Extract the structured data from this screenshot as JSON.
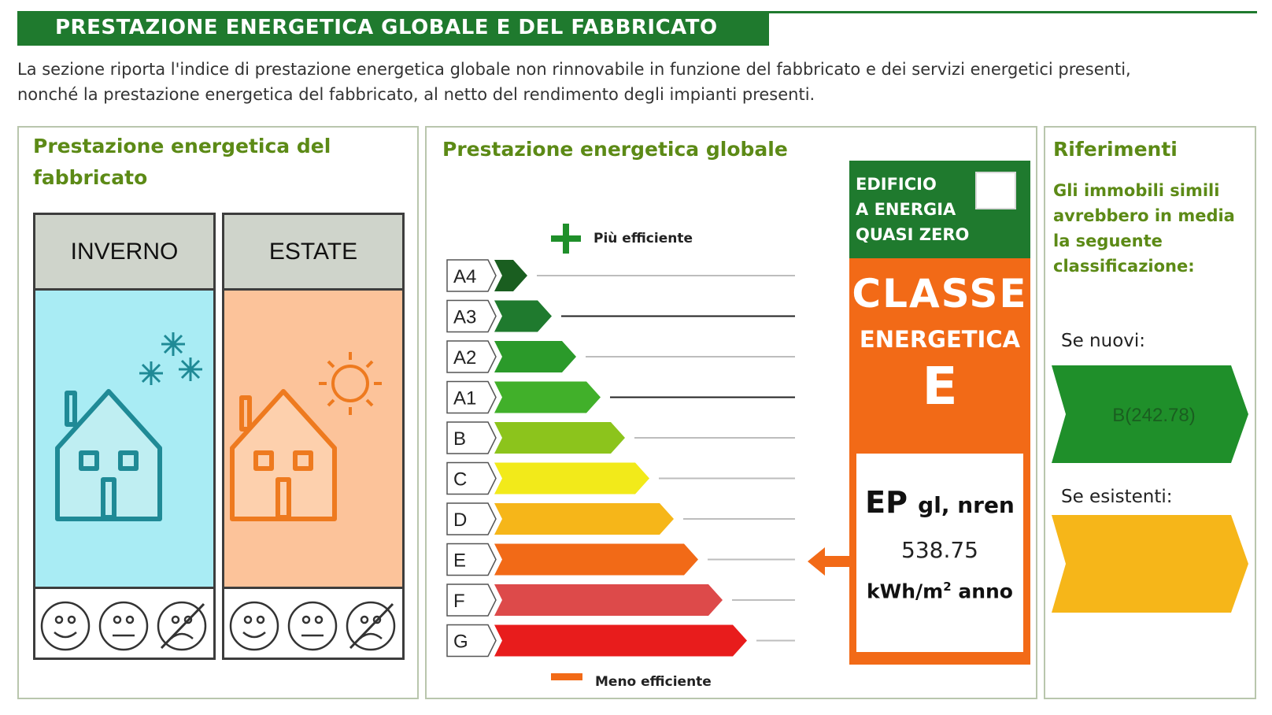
{
  "header": {
    "title": "PRESTAZIONE ENERGETICA GLOBALE  E DEL FABBRICATO",
    "intro_line1": "La sezione riporta l'indice di prestazione energetica globale non rinnovabile in funzione del fabbricato e dei servizi energetici presenti,",
    "intro_line2": "nonché la prestazione energetica del fabbricato, al netto del rendimento degli impianti presenti."
  },
  "building": {
    "title_line1": "Prestazione energetica del",
    "title_line2": "fabbricato",
    "winter_label": "INVERNO",
    "summer_label": "ESTATE",
    "colors": {
      "winter": "#a9ecf4",
      "summer": "#fcc39a",
      "winter_icon": "#1f8a96",
      "summer_icon": "#ee7a1f"
    }
  },
  "global": {
    "title": "Prestazione energetica globale",
    "more_efficient": "Più efficiente",
    "less_efficient": "Meno efficiente",
    "classes": [
      {
        "label": "A4",
        "color": "#1a5e20"
      },
      {
        "label": "A3",
        "color": "#1f7a2e"
      },
      {
        "label": "A2",
        "color": "#2b9a2a"
      },
      {
        "label": "A1",
        "color": "#41b02a"
      },
      {
        "label": "B",
        "color": "#8cc41c"
      },
      {
        "label": "C",
        "color": "#f2ea1a"
      },
      {
        "label": "D",
        "color": "#f6b619"
      },
      {
        "label": "E",
        "color": "#f26a17"
      },
      {
        "label": "F",
        "color": "#dd4a4a"
      },
      {
        "label": "G",
        "color": "#e81c1c"
      }
    ],
    "current_class": "E"
  },
  "energy_class": {
    "nzeb_line1": "EDIFICIO",
    "nzeb_line2": "A ENERGIA",
    "nzeb_line3": "QUASI ZERO",
    "classe": "CLASSE",
    "energetica": "ENERGETICA",
    "class_value": "E",
    "ep_label": "EP",
    "ep_sub": "gl, nren",
    "ep_value": "538.75",
    "ep_unit": "kWh/m",
    "ep_unit_sup": "2",
    "ep_unit_tail": "anno"
  },
  "references": {
    "title": "Riferimenti",
    "line1": "Gli immobili simili",
    "line2": "avrebbero in media",
    "line3": "la seguente",
    "line4": "classificazione:",
    "new_label": "Se nuovi:",
    "new_value": "B(242.78)",
    "existing_label": "Se esistenti:",
    "colors": {
      "new": "#1f8f2a",
      "existing": "#f6b619"
    }
  }
}
